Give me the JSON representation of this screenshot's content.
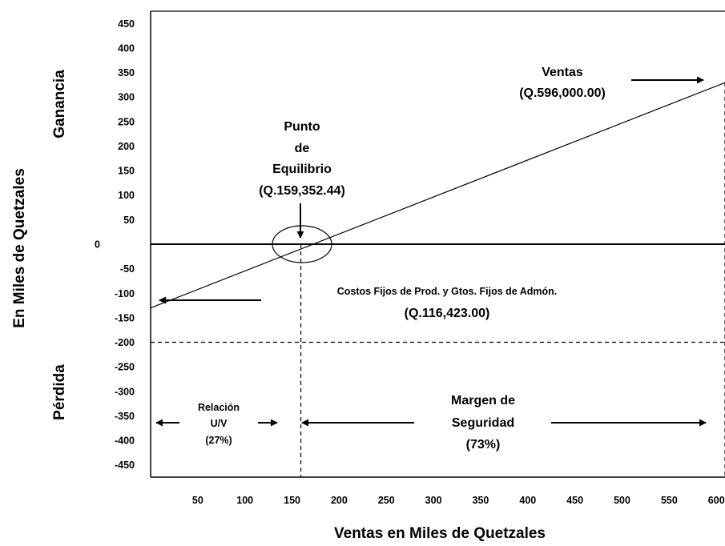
{
  "chart_data": {
    "type": "line",
    "xlabel": "Ventas en Miles de Quetzales",
    "ylabel": "En Miles de Quetzales",
    "side_labels": {
      "top": "Ganancia",
      "bottom": "Pérdida"
    },
    "xlim": [
      0,
      610
    ],
    "ylim": [
      -475,
      475
    ],
    "x_ticks": [
      50,
      100,
      150,
      200,
      250,
      300,
      350,
      400,
      450,
      500,
      550,
      600
    ],
    "y_ticks": [
      450,
      400,
      350,
      300,
      250,
      200,
      150,
      100,
      50,
      "0",
      -50,
      -100,
      -150,
      -200,
      -250,
      -300,
      -350,
      -400,
      -450
    ],
    "grid": false,
    "series": [
      {
        "values": [
          [
            0,
            -130
          ],
          [
            610,
            330
          ]
        ]
      }
    ],
    "reference_lines": {
      "zero_y": 0,
      "fixed_cost_y": -200,
      "breakeven_x": 159.35,
      "sales_x": 610
    },
    "annotations": {
      "breakeven": [
        "Punto",
        "de",
        "Equilibrio",
        "(Q.159,352.44)"
      ],
      "sales": [
        "Ventas",
        "(Q.596,000.00)"
      ],
      "fixed_costs": [
        "Costos Fijos de Prod. y Gtos. Fijos de Admón.",
        "(Q.116,423.00)"
      ],
      "uv_ratio": [
        "Relación",
        "U/V",
        "(27%)"
      ],
      "safety_margin": [
        "Margen de",
        "Seguridad",
        "(73%)"
      ]
    }
  }
}
